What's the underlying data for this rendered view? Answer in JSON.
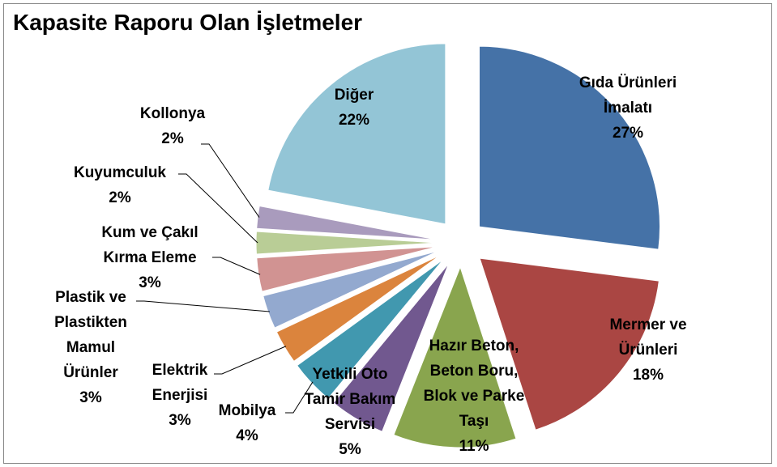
{
  "chart_data": {
    "type": "pie",
    "title": "Kapasite Raporu Olan İşletmeler",
    "categories": [
      "Gıda Ürünleri İmalatı",
      "Mermer ve Ürünleri",
      "Hazır Beton, Beton Boru, Blok ve Parke Taşı",
      "Yetkili Oto Tamir Bakım Servisi",
      "Mobilya",
      "Elektrik Enerjisi",
      "Plastik ve Plastikten Mamul Ürünler",
      "Kum ve Çakıl Kırma Eleme",
      "Kuyumculuk",
      "Kollonya",
      "Diğer"
    ],
    "values": [
      27,
      18,
      11,
      5,
      4,
      3,
      3,
      3,
      2,
      2,
      22
    ],
    "value_labels": [
      "27%",
      "18%",
      "11%",
      "5%",
      "4%",
      "3%",
      "3%",
      "3%",
      "2%",
      "2%",
      "22%"
    ],
    "colors": [
      "#4572a7",
      "#aa4643",
      "#89a54e",
      "#71588f",
      "#4198af",
      "#db843d",
      "#93a9cf",
      "#d19392",
      "#b9cd96",
      "#a99bbd",
      "#93c5d6"
    ]
  }
}
